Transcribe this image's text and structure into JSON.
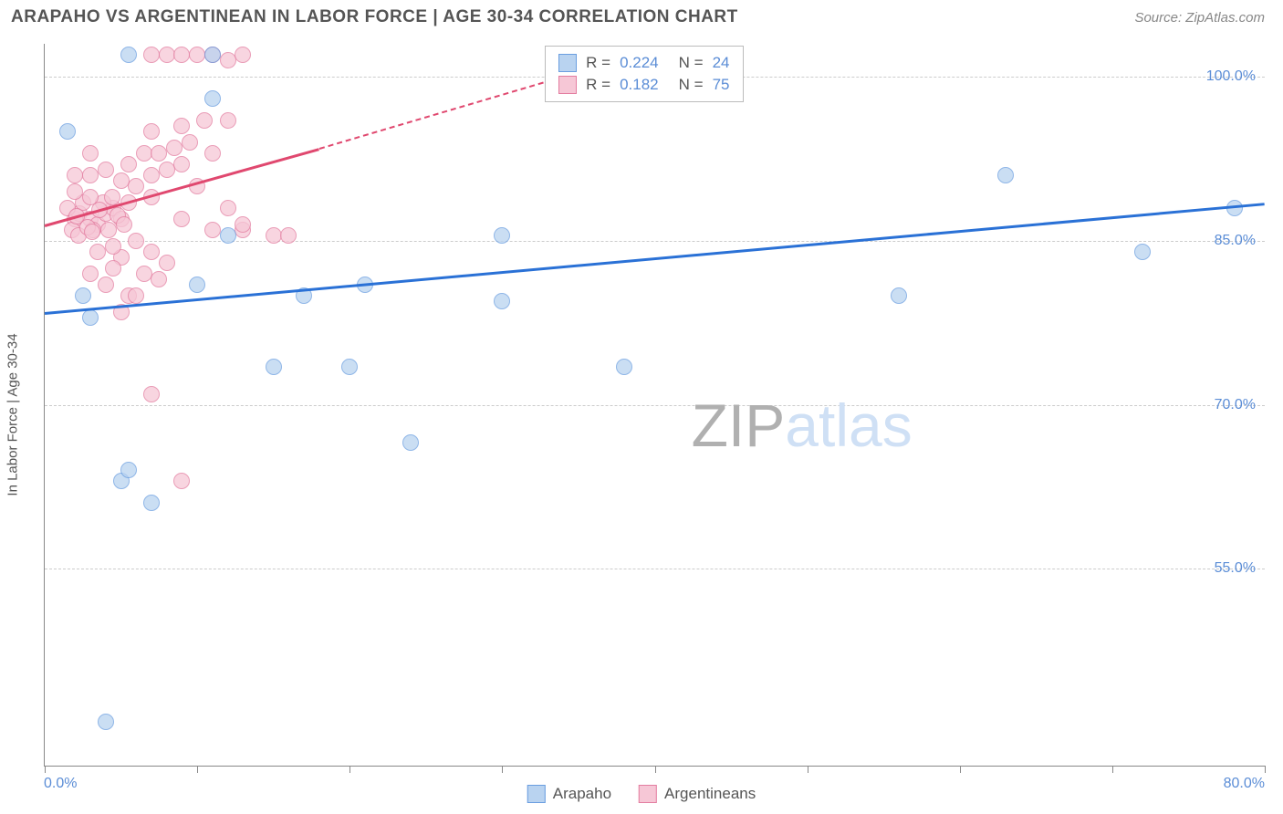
{
  "header": {
    "title": "ARAPAHO VS ARGENTINEAN IN LABOR FORCE | AGE 30-34 CORRELATION CHART",
    "source": "Source: ZipAtlas.com"
  },
  "chart": {
    "type": "scatter",
    "xlim": [
      0,
      80
    ],
    "ylim": [
      37,
      103
    ],
    "xtick_positions": [
      0,
      10,
      20,
      30,
      40,
      50,
      60,
      70,
      80
    ],
    "xtick_labels": {
      "first": "0.0%",
      "last": "80.0%"
    },
    "ytick_positions": [
      55,
      70,
      85,
      100
    ],
    "ytick_labels": [
      "55.0%",
      "70.0%",
      "85.0%",
      "100.0%"
    ],
    "ylabel": "In Labor Force | Age 30-34",
    "background_color": "#ffffff",
    "grid_color": "#cccccc",
    "axis_color": "#888888",
    "series": {
      "arapaho": {
        "label": "Arapaho",
        "stroke": "#6a9ee0",
        "fill": "#b9d3f0",
        "marker_size": 18,
        "points": [
          [
            5.5,
            102
          ],
          [
            1.5,
            95
          ],
          [
            11,
            98
          ],
          [
            11,
            102
          ],
          [
            2.5,
            80
          ],
          [
            3,
            78
          ],
          [
            12,
            85.5
          ],
          [
            30,
            85.5
          ],
          [
            10,
            81
          ],
          [
            17,
            80
          ],
          [
            30,
            79.5
          ],
          [
            21,
            81
          ],
          [
            15,
            73.5
          ],
          [
            20,
            73.5
          ],
          [
            24,
            66.5
          ],
          [
            38,
            73.5
          ],
          [
            5,
            63
          ],
          [
            7,
            61
          ],
          [
            5.5,
            64
          ],
          [
            4,
            41
          ],
          [
            63,
            91
          ],
          [
            78,
            88
          ],
          [
            72,
            84
          ],
          [
            56,
            80
          ]
        ],
        "regression": {
          "x1": 0,
          "y1": 78.5,
          "x2": 80,
          "y2": 88.5,
          "color": "#2a71d6",
          "width": 3,
          "dash": false
        }
      },
      "argentineans": {
        "label": "Argentineans",
        "stroke": "#e37da0",
        "fill": "#f6c7d6",
        "marker_size": 18,
        "points": [
          [
            2,
            87
          ],
          [
            2.3,
            87.5
          ],
          [
            3,
            87
          ],
          [
            3.5,
            86.5
          ],
          [
            2.5,
            88.5
          ],
          [
            1.8,
            86
          ],
          [
            2.2,
            85.5
          ],
          [
            3.2,
            86
          ],
          [
            4,
            87.5
          ],
          [
            4.5,
            88
          ],
          [
            5,
            87
          ],
          [
            3.8,
            88.5
          ],
          [
            4.2,
            86
          ],
          [
            3,
            89
          ],
          [
            2,
            89.5
          ],
          [
            4.8,
            87.3
          ],
          [
            1.5,
            88
          ],
          [
            5.5,
            88.5
          ],
          [
            2.8,
            86.2
          ],
          [
            3.6,
            87.8
          ],
          [
            4.4,
            89
          ],
          [
            5.2,
            86.5
          ],
          [
            2.1,
            87.2
          ],
          [
            3.1,
            85.8
          ],
          [
            5,
            83.5
          ],
          [
            6,
            85
          ],
          [
            4.5,
            82.5
          ],
          [
            7,
            84
          ],
          [
            5.5,
            80
          ],
          [
            6.5,
            82
          ],
          [
            8,
            83
          ],
          [
            7.5,
            81.5
          ],
          [
            3,
            91
          ],
          [
            4,
            91.5
          ],
          [
            5,
            90.5
          ],
          [
            6,
            90
          ],
          [
            7,
            91
          ],
          [
            5.5,
            92
          ],
          [
            6.5,
            93
          ],
          [
            8,
            91.5
          ],
          [
            9,
            92
          ],
          [
            10,
            90
          ],
          [
            10.5,
            96
          ],
          [
            9.5,
            94
          ],
          [
            8.5,
            93.5
          ],
          [
            11,
            93
          ],
          [
            12,
            96
          ],
          [
            3,
            82
          ],
          [
            4,
            81
          ],
          [
            5,
            78.5
          ],
          [
            6,
            80
          ],
          [
            3.5,
            84
          ],
          [
            4.5,
            84.5
          ],
          [
            7,
            102
          ],
          [
            8,
            102
          ],
          [
            9,
            102
          ],
          [
            10,
            102
          ],
          [
            11,
            102
          ],
          [
            12,
            101.5
          ],
          [
            13,
            102
          ],
          [
            7,
            95
          ],
          [
            7.5,
            93
          ],
          [
            9,
            95.5
          ],
          [
            7,
            89
          ],
          [
            9,
            87
          ],
          [
            11,
            86
          ],
          [
            12,
            88
          ],
          [
            13,
            86
          ],
          [
            15,
            85.5
          ],
          [
            16,
            85.5
          ],
          [
            7,
            71
          ],
          [
            9,
            63
          ],
          [
            13,
            86.5
          ],
          [
            3,
            93
          ],
          [
            2,
            91
          ]
        ],
        "regression_solid": {
          "x1": 0,
          "y1": 86.5,
          "x2": 18,
          "y2": 93.5,
          "color": "#e0486f",
          "width": 3
        },
        "regression_dashed": {
          "x1": 18,
          "y1": 93.5,
          "x2": 35,
          "y2": 100.5,
          "color": "#e0486f",
          "width": 2
        }
      }
    },
    "stats_legend": {
      "rows": [
        {
          "swatch_fill": "#b9d3f0",
          "swatch_stroke": "#6a9ee0",
          "r_label": "R =",
          "r_value": "0.224",
          "n_label": "N =",
          "n_value": "24"
        },
        {
          "swatch_fill": "#f6c7d6",
          "swatch_stroke": "#e37da0",
          "r_label": "R =",
          "r_value": "0.182",
          "n_label": "N =",
          "n_value": "75"
        }
      ]
    },
    "watermark": {
      "text_a": "ZIP",
      "text_b": "atlas",
      "color_a": "#b0b0b0",
      "color_b": "#cfe0f5"
    }
  }
}
